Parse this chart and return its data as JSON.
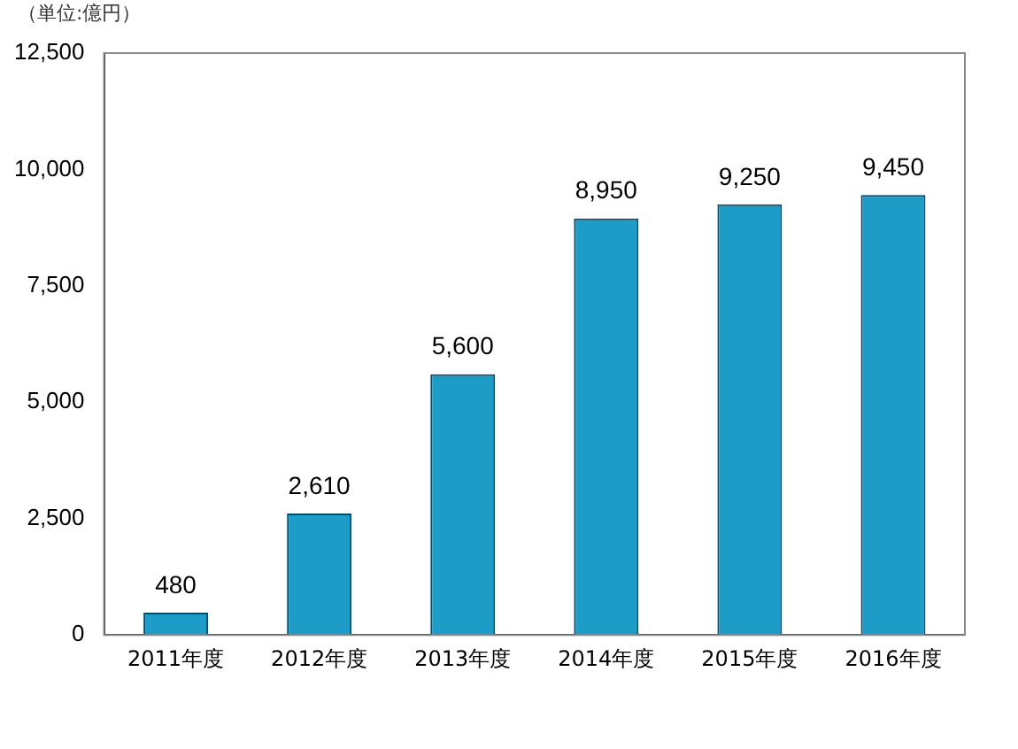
{
  "chart_data": {
    "type": "bar",
    "annotations": [
      "（単位:億円）"
    ],
    "categories": [
      "2011年度",
      "2012年度",
      "2013年度",
      "2014年度",
      "2015年度",
      "2016年度"
    ],
    "values": [
      480,
      2610,
      5600,
      8950,
      9250,
      9450
    ],
    "value_labels": [
      "480",
      "2,610",
      "5,600",
      "8,950",
      "9,250",
      "9,450"
    ],
    "color": "#1e9cc8",
    "ylim": [
      0,
      12500
    ],
    "yticks": [
      {
        "value": 0,
        "label": "0"
      },
      {
        "value": 2500,
        "label": "2,500"
      },
      {
        "value": 5000,
        "label": "5,000"
      },
      {
        "value": 7500,
        "label": "7,500"
      },
      {
        "value": 10000,
        "label": "10,000"
      },
      {
        "value": 12500,
        "label": "12,500"
      }
    ],
    "grid": false,
    "legend": false
  }
}
